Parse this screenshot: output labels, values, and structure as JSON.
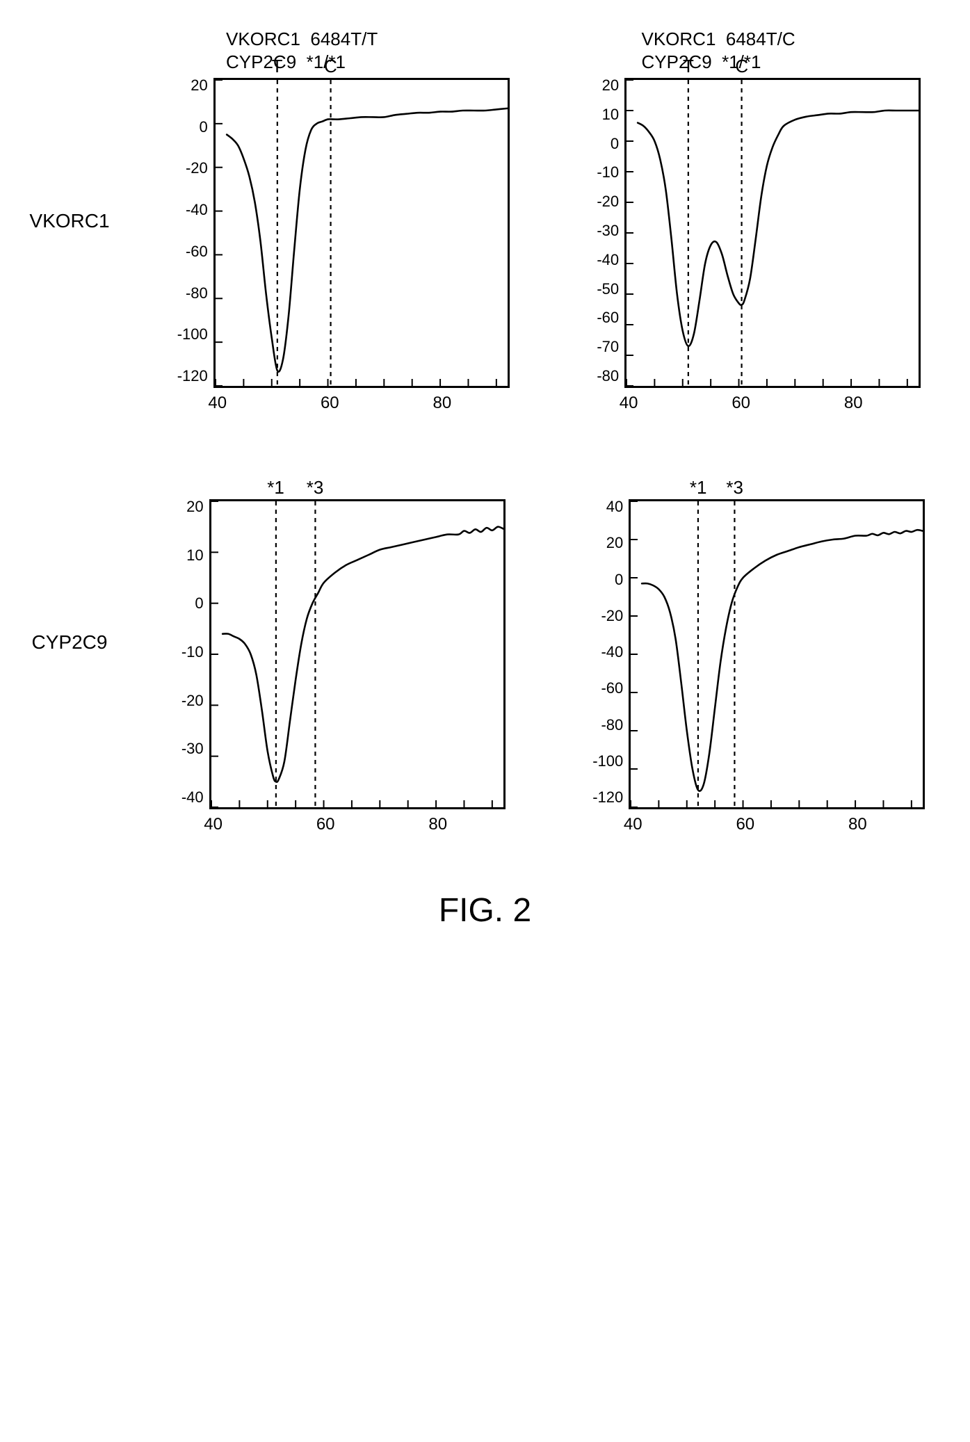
{
  "figure_caption": "FIG. 2",
  "row_labels": [
    "VKORC1",
    "CYP2C9"
  ],
  "columns": [
    {
      "title": "VKORC1  6484T/T\nCYP2C9  *1/*1"
    },
    {
      "title": "VKORC1  6484T/C\nCYP2C9  *1/*1"
    }
  ],
  "panels": [
    {
      "id": "p11",
      "row": 0,
      "col": 0,
      "type": "line",
      "xlim": [
        40,
        92
      ],
      "xtick_values": [
        40,
        60,
        80
      ],
      "ylim": [
        -120,
        20
      ],
      "ytick_values": [
        20,
        0,
        -20,
        -40,
        -60,
        -80,
        -100,
        -120
      ],
      "markers": [
        {
          "x": 51,
          "label": "T"
        },
        {
          "x": 60.5,
          "label": "C"
        }
      ],
      "line": {
        "color": "#000000",
        "width": 2.6,
        "points": [
          [
            42,
            -5
          ],
          [
            43,
            -7
          ],
          [
            44,
            -10
          ],
          [
            45,
            -16
          ],
          [
            46,
            -24
          ],
          [
            47,
            -36
          ],
          [
            48,
            -54
          ],
          [
            49,
            -78
          ],
          [
            50,
            -98
          ],
          [
            51,
            -113
          ],
          [
            52,
            -108
          ],
          [
            53,
            -88
          ],
          [
            54,
            -58
          ],
          [
            55,
            -30
          ],
          [
            56,
            -12
          ],
          [
            57,
            -3
          ],
          [
            58,
            0
          ],
          [
            59,
            1
          ],
          [
            60,
            2
          ],
          [
            61,
            2
          ],
          [
            62,
            2
          ],
          [
            64,
            2.5
          ],
          [
            66,
            3
          ],
          [
            68,
            3
          ],
          [
            70,
            3
          ],
          [
            72,
            4
          ],
          [
            74,
            4.5
          ],
          [
            76,
            5
          ],
          [
            78,
            5
          ],
          [
            80,
            5.5
          ],
          [
            82,
            5.5
          ],
          [
            84,
            6
          ],
          [
            86,
            6
          ],
          [
            88,
            6
          ],
          [
            90,
            6.5
          ],
          [
            92,
            7
          ]
        ]
      },
      "marker_line_color": "#000000",
      "marker_dash": "6,6"
    },
    {
      "id": "p12",
      "row": 0,
      "col": 1,
      "type": "line",
      "xlim": [
        40,
        92
      ],
      "xtick_values": [
        40,
        60,
        80
      ],
      "ylim": [
        -80,
        20
      ],
      "ytick_values": [
        20,
        10,
        0,
        -10,
        -20,
        -30,
        -40,
        -50,
        -60,
        -70,
        -80
      ],
      "markers": [
        {
          "x": 51,
          "label": "T"
        },
        {
          "x": 60.5,
          "label": "C"
        }
      ],
      "line": {
        "color": "#000000",
        "width": 2.6,
        "points": [
          [
            42,
            6
          ],
          [
            43,
            5
          ],
          [
            44,
            3
          ],
          [
            45,
            0
          ],
          [
            46,
            -6
          ],
          [
            47,
            -16
          ],
          [
            48,
            -32
          ],
          [
            49,
            -50
          ],
          [
            50,
            -62
          ],
          [
            51,
            -67
          ],
          [
            52,
            -63
          ],
          [
            53,
            -52
          ],
          [
            54,
            -40
          ],
          [
            55,
            -34
          ],
          [
            56,
            -33
          ],
          [
            57,
            -37
          ],
          [
            58,
            -44
          ],
          [
            59,
            -50
          ],
          [
            60,
            -53
          ],
          [
            60.5,
            -53.5
          ],
          [
            61,
            -52
          ],
          [
            62,
            -45
          ],
          [
            63,
            -32
          ],
          [
            64,
            -18
          ],
          [
            65,
            -8
          ],
          [
            66,
            -2
          ],
          [
            67,
            2
          ],
          [
            68,
            5
          ],
          [
            70,
            7
          ],
          [
            72,
            8
          ],
          [
            74,
            8.5
          ],
          [
            76,
            9
          ],
          [
            78,
            9
          ],
          [
            80,
            9.5
          ],
          [
            82,
            9.5
          ],
          [
            84,
            9.5
          ],
          [
            86,
            10
          ],
          [
            88,
            10
          ],
          [
            90,
            10
          ],
          [
            92,
            10
          ]
        ]
      },
      "marker_line_color": "#000000",
      "marker_dash": "6,6"
    },
    {
      "id": "p21",
      "row": 1,
      "col": 0,
      "type": "line",
      "xlim": [
        40,
        92
      ],
      "xtick_values": [
        40,
        60,
        80
      ],
      "ylim": [
        -40,
        20
      ],
      "ytick_values": [
        20,
        10,
        0,
        -10,
        -20,
        -30,
        -40
      ],
      "markers": [
        {
          "x": 51.5,
          "label": "*1"
        },
        {
          "x": 58.5,
          "label": "*3"
        }
      ],
      "line": {
        "color": "#000000",
        "width": 2.6,
        "points": [
          [
            42,
            -6
          ],
          [
            43,
            -6
          ],
          [
            44,
            -6.5
          ],
          [
            45,
            -7
          ],
          [
            46,
            -8
          ],
          [
            47,
            -10
          ],
          [
            48,
            -14
          ],
          [
            49,
            -21
          ],
          [
            50,
            -29
          ],
          [
            51,
            -34
          ],
          [
            51.5,
            -35
          ],
          [
            52,
            -34.5
          ],
          [
            53,
            -31
          ],
          [
            54,
            -23
          ],
          [
            55,
            -15
          ],
          [
            56,
            -8
          ],
          [
            57,
            -3
          ],
          [
            58,
            0
          ],
          [
            59,
            2
          ],
          [
            60,
            4
          ],
          [
            62,
            6
          ],
          [
            64,
            7.5
          ],
          [
            66,
            8.5
          ],
          [
            68,
            9.5
          ],
          [
            70,
            10.5
          ],
          [
            72,
            11
          ],
          [
            74,
            11.5
          ],
          [
            76,
            12
          ],
          [
            78,
            12.5
          ],
          [
            80,
            13
          ],
          [
            82,
            13.5
          ],
          [
            84,
            13.5
          ],
          [
            85,
            14.2
          ],
          [
            86,
            13.8
          ],
          [
            87,
            14.5
          ],
          [
            88,
            14
          ],
          [
            89,
            14.8
          ],
          [
            90,
            14.3
          ],
          [
            91,
            15
          ],
          [
            92,
            14.6
          ]
        ]
      },
      "marker_line_color": "#000000",
      "marker_dash": "6,6"
    },
    {
      "id": "p22",
      "row": 1,
      "col": 1,
      "type": "line",
      "xlim": [
        40,
        92
      ],
      "xtick_values": [
        40,
        60,
        80
      ],
      "ylim": [
        -120,
        40
      ],
      "ytick_values": [
        40,
        20,
        0,
        -20,
        -40,
        -60,
        -80,
        -100,
        -120
      ],
      "markers": [
        {
          "x": 52,
          "label": "*1"
        },
        {
          "x": 58.5,
          "label": "*3"
        }
      ],
      "line": {
        "color": "#000000",
        "width": 2.6,
        "points": [
          [
            42,
            -3
          ],
          [
            43,
            -3
          ],
          [
            44,
            -4
          ],
          [
            45,
            -6
          ],
          [
            46,
            -10
          ],
          [
            47,
            -18
          ],
          [
            48,
            -32
          ],
          [
            49,
            -55
          ],
          [
            50,
            -80
          ],
          [
            51,
            -100
          ],
          [
            52,
            -111
          ],
          [
            53,
            -108
          ],
          [
            54,
            -92
          ],
          [
            55,
            -68
          ],
          [
            56,
            -44
          ],
          [
            57,
            -26
          ],
          [
            58,
            -13
          ],
          [
            59,
            -5
          ],
          [
            60,
            0
          ],
          [
            62,
            5
          ],
          [
            64,
            9
          ],
          [
            66,
            12
          ],
          [
            68,
            14
          ],
          [
            70,
            16
          ],
          [
            72,
            17.5
          ],
          [
            74,
            19
          ],
          [
            76,
            20
          ],
          [
            78,
            20.5
          ],
          [
            80,
            22
          ],
          [
            82,
            22
          ],
          [
            83,
            23
          ],
          [
            84,
            22.2
          ],
          [
            85,
            23.5
          ],
          [
            86,
            22.8
          ],
          [
            87,
            24
          ],
          [
            88,
            23.2
          ],
          [
            89,
            24.5
          ],
          [
            90,
            24
          ],
          [
            91,
            25
          ],
          [
            92,
            24.5
          ]
        ]
      },
      "marker_line_color": "#000000",
      "marker_dash": "6,6"
    }
  ],
  "style": {
    "border_color": "#000000",
    "border_width": 3,
    "background_color": "#ffffff",
    "tick_fontsize": 22,
    "label_fontsize": 26,
    "title_fontsize": 26,
    "caption_fontsize": 48
  }
}
